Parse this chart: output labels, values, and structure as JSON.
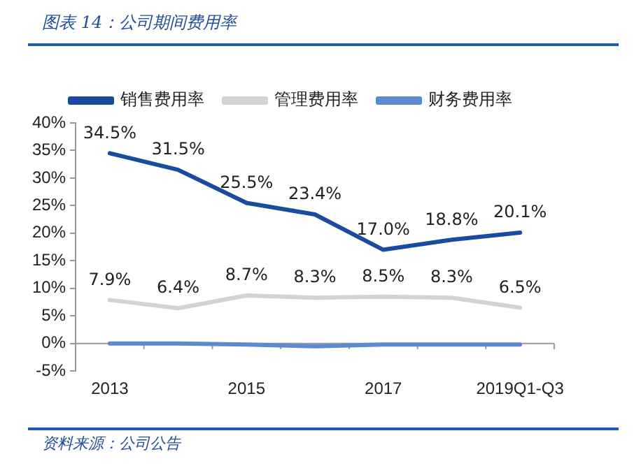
{
  "chart_data": {
    "type": "line",
    "title": "图表 14：公司期间费用率",
    "categories": [
      "2013",
      null,
      "2015",
      null,
      "2017",
      null,
      "2019Q1-Q3"
    ],
    "series": [
      {
        "name": "销售费用率",
        "color": "#1b4b9e",
        "values": [
          34.5,
          31.5,
          25.5,
          23.4,
          17.0,
          18.8,
          20.1
        ],
        "value_labels": [
          "34.5%",
          "31.5%",
          "25.5%",
          "23.4%",
          "17.0%",
          "18.8%",
          "20.1%"
        ]
      },
      {
        "name": "管理费用率",
        "color": "#d3d3d3",
        "values": [
          7.9,
          6.4,
          8.7,
          8.3,
          8.5,
          8.3,
          6.5
        ],
        "value_labels": [
          "7.9%",
          "6.4%",
          "8.7%",
          "8.3%",
          "8.5%",
          "8.3%",
          "6.5%"
        ]
      },
      {
        "name": "财务费用率",
        "color": "#5b8ad0",
        "values": [
          0,
          0,
          -0.2,
          -0.5,
          -0.2,
          -0.2,
          -0.2
        ]
      }
    ],
    "ylim": [
      -5,
      40
    ],
    "yticks": [
      {
        "value": -5,
        "label": "-5%"
      },
      {
        "value": 0,
        "label": "0%"
      },
      {
        "value": 5,
        "label": "5%"
      },
      {
        "value": 10,
        "label": "10%"
      },
      {
        "value": 15,
        "label": "15%"
      },
      {
        "value": 20,
        "label": "20%"
      },
      {
        "value": 25,
        "label": "25%"
      },
      {
        "value": 30,
        "label": "30%"
      },
      {
        "value": 35,
        "label": "35%"
      },
      {
        "value": 40,
        "label": "40%"
      }
    ],
    "grid": false,
    "legend": "top",
    "marker": "none",
    "line_style": "solid",
    "annotations": [
      "资料来源：公司公告"
    ]
  }
}
